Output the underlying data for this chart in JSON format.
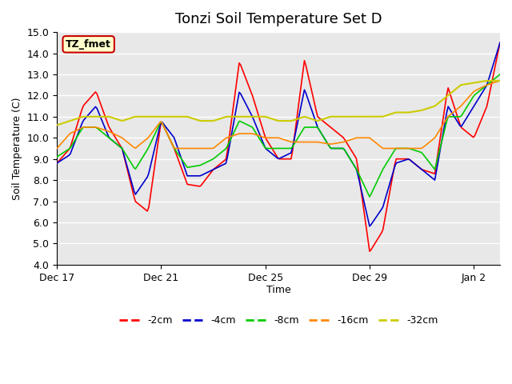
{
  "title": "Tonzi Soil Temperature Set D",
  "xlabel": "Time",
  "ylabel": "Soil Temperature (C)",
  "ylim": [
    4.0,
    15.0
  ],
  "yticks": [
    4.0,
    5.0,
    6.0,
    7.0,
    8.0,
    9.0,
    10.0,
    11.0,
    12.0,
    13.0,
    14.0,
    15.0
  ],
  "xtick_labels": [
    "Dec 17",
    "Dec 21",
    "Dec 25",
    "Dec 29",
    "Jan 2"
  ],
  "xtick_positions": [
    0,
    4,
    8,
    12,
    16
  ],
  "label_box_text": "TZ_fmet",
  "label_box_color": "#ffffcc",
  "label_box_edge": "#cc0000",
  "series_labels": [
    "-2cm",
    "-4cm",
    "-8cm",
    "-16cm",
    "-32cm"
  ],
  "series_colors": [
    "#ff0000",
    "#0000cc",
    "#00cc00",
    "#ff8800",
    "#cccc00"
  ],
  "plot_bg_color": "#e8e8e8",
  "grid_color": "#ffffff",
  "title_fontsize": 13,
  "xp": [
    0,
    0.5,
    1,
    1.5,
    2,
    2.5,
    3,
    3.5,
    4,
    4.5,
    5,
    5.5,
    6,
    6.5,
    7,
    7.5,
    8,
    8.5,
    9,
    9.5,
    10,
    10.5,
    11,
    11.5,
    12,
    12.5,
    13,
    13.5,
    14,
    14.5,
    15,
    15.5,
    16,
    16.5,
    17
  ],
  "s2cm": [
    8.8,
    9.5,
    11.5,
    12.2,
    10.5,
    9.5,
    7.0,
    6.5,
    10.8,
    9.5,
    7.8,
    7.7,
    8.5,
    9.0,
    13.6,
    12.0,
    10.0,
    9.0,
    9.0,
    13.7,
    11.0,
    10.5,
    10.0,
    9.0,
    4.6,
    5.6,
    9.0,
    9.0,
    8.5,
    8.3,
    12.4,
    10.5,
    10.0,
    11.5,
    14.5
  ],
  "s4cm": [
    8.8,
    9.2,
    10.8,
    11.5,
    10.0,
    9.5,
    7.3,
    8.2,
    10.8,
    10.0,
    8.2,
    8.2,
    8.5,
    8.8,
    12.2,
    11.0,
    9.5,
    9.0,
    9.3,
    12.3,
    10.5,
    9.5,
    9.5,
    8.5,
    5.8,
    6.7,
    8.8,
    9.0,
    8.5,
    8.0,
    11.5,
    10.5,
    11.5,
    12.5,
    14.5
  ],
  "s8cm": [
    9.1,
    9.5,
    10.5,
    10.5,
    10.0,
    9.5,
    8.5,
    9.5,
    10.8,
    9.5,
    8.6,
    8.7,
    9.0,
    9.5,
    10.8,
    10.5,
    9.5,
    9.5,
    9.5,
    10.5,
    10.5,
    9.5,
    9.5,
    8.5,
    7.2,
    8.5,
    9.5,
    9.5,
    9.3,
    8.5,
    11.0,
    11.0,
    12.0,
    12.5,
    13.0
  ],
  "s16cm": [
    9.5,
    10.2,
    10.5,
    10.5,
    10.3,
    10.0,
    9.5,
    10.0,
    10.8,
    9.5,
    9.5,
    9.5,
    9.5,
    10.0,
    10.2,
    10.2,
    10.0,
    10.0,
    9.8,
    9.8,
    9.8,
    9.7,
    9.8,
    10.0,
    10.0,
    9.5,
    9.5,
    9.5,
    9.5,
    10.0,
    11.0,
    11.5,
    12.2,
    12.5,
    12.7
  ],
  "s32cm": [
    10.6,
    10.8,
    11.0,
    11.0,
    11.0,
    10.8,
    11.0,
    11.0,
    11.0,
    11.0,
    11.0,
    10.8,
    10.8,
    11.0,
    11.0,
    11.0,
    11.0,
    10.8,
    10.8,
    11.0,
    10.8,
    11.0,
    11.0,
    11.0,
    11.0,
    11.0,
    11.2,
    11.2,
    11.3,
    11.5,
    12.0,
    12.5,
    12.6,
    12.7,
    12.7
  ]
}
